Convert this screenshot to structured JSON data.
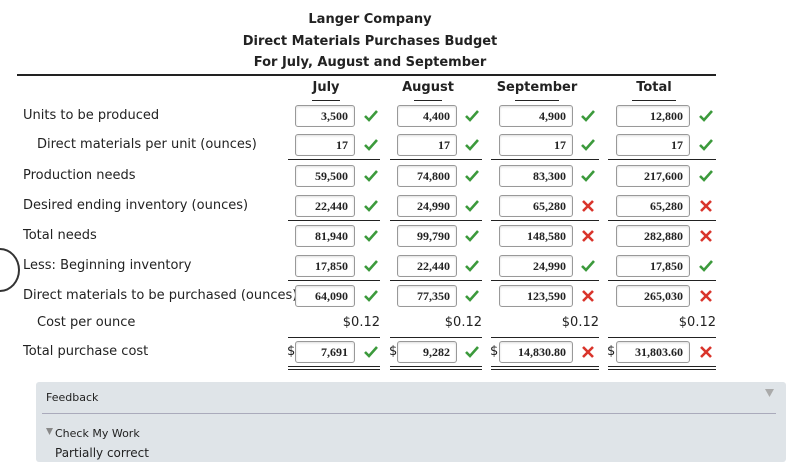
{
  "header": {
    "title": "Langer Company",
    "subtitle": "Direct Materials Purchases Budget",
    "period": "For July, August and September"
  },
  "columns": [
    "July",
    "August",
    "September",
    "Total"
  ],
  "currency_symbol": "$",
  "rows": [
    {
      "label": "Units to be produced",
      "indent": false,
      "kind": "input",
      "cells": [
        {
          "value": "3,500",
          "status": "correct"
        },
        {
          "value": "4,400",
          "status": "correct"
        },
        {
          "value": "4,900",
          "status": "correct"
        },
        {
          "value": "12,800",
          "status": "correct"
        }
      ]
    },
    {
      "label": "Direct materials per unit (ounces)",
      "indent": true,
      "kind": "input",
      "rule_below": "single",
      "cells": [
        {
          "value": "17",
          "status": "correct"
        },
        {
          "value": "17",
          "status": "correct"
        },
        {
          "value": "17",
          "status": "correct"
        },
        {
          "value": "17",
          "status": "correct"
        }
      ]
    },
    {
      "label": "Production needs",
      "indent": false,
      "kind": "input",
      "cells": [
        {
          "value": "59,500",
          "status": "correct"
        },
        {
          "value": "74,800",
          "status": "correct"
        },
        {
          "value": "83,300",
          "status": "correct"
        },
        {
          "value": "217,600",
          "status": "correct"
        }
      ]
    },
    {
      "label": "Desired ending inventory (ounces)",
      "indent": false,
      "kind": "input",
      "rule_below": "single",
      "cells": [
        {
          "value": "22,440",
          "status": "correct"
        },
        {
          "value": "24,990",
          "status": "correct"
        },
        {
          "value": "65,280",
          "status": "incorrect"
        },
        {
          "value": "65,280",
          "status": "incorrect"
        }
      ]
    },
    {
      "label": "Total needs",
      "indent": false,
      "kind": "input",
      "cells": [
        {
          "value": "81,940",
          "status": "correct"
        },
        {
          "value": "99,790",
          "status": "correct"
        },
        {
          "value": "148,580",
          "status": "incorrect"
        },
        {
          "value": "282,880",
          "status": "incorrect"
        }
      ]
    },
    {
      "label": "Less: Beginning inventory",
      "indent": false,
      "kind": "input",
      "rule_below": "single",
      "cells": [
        {
          "value": "17,850",
          "status": "correct"
        },
        {
          "value": "22,440",
          "status": "correct"
        },
        {
          "value": "24,990",
          "status": "correct"
        },
        {
          "value": "17,850",
          "status": "correct"
        }
      ]
    },
    {
      "label": "Direct materials to be purchased (ounces)",
      "indent": false,
      "kind": "input",
      "cells": [
        {
          "value": "64,090",
          "status": "correct"
        },
        {
          "value": "77,350",
          "status": "correct"
        },
        {
          "value": "123,590",
          "status": "incorrect"
        },
        {
          "value": "265,030",
          "status": "incorrect"
        }
      ]
    },
    {
      "label": "Cost per ounce",
      "indent": true,
      "kind": "text",
      "rule_below": "single",
      "cells": [
        {
          "value": "$0.12"
        },
        {
          "value": "$0.12"
        },
        {
          "value": "$0.12"
        },
        {
          "value": "$0.12"
        }
      ]
    },
    {
      "label": "Total purchase cost",
      "indent": false,
      "kind": "currency-input",
      "rule_below": "double",
      "cells": [
        {
          "value": "7,691",
          "status": "correct"
        },
        {
          "value": "9,282",
          "status": "correct"
        },
        {
          "value": "14,830.80",
          "status": "incorrect"
        },
        {
          "value": "31,803.60",
          "status": "incorrect"
        }
      ]
    }
  ],
  "feedback": {
    "title": "Feedback",
    "section": "Check My Work",
    "result": "Partially correct"
  }
}
